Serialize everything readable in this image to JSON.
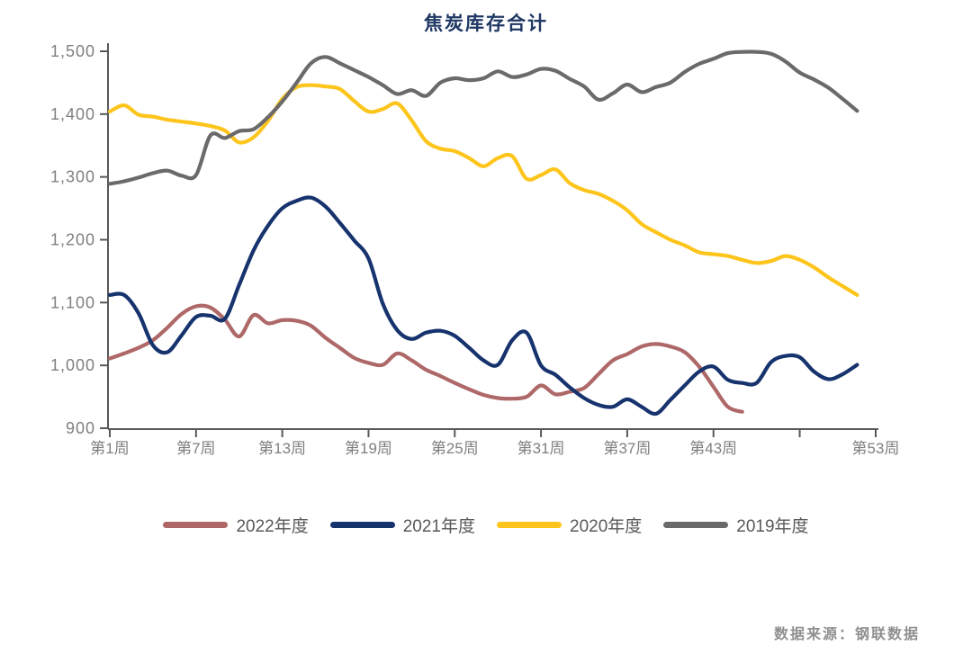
{
  "title": "焦炭库存合计",
  "title_color": "#1f3864",
  "source": "数据来源：钢联数据",
  "axis_color": "#595959",
  "tick_label_color": "#7f7f7f",
  "chart_data": {
    "type": "line",
    "title": "焦炭库存合计",
    "xlabel": "",
    "ylabel": "",
    "ylim": [
      900,
      1500
    ],
    "grid": false,
    "legend_position": "bottom",
    "y_ticks": [
      {
        "v": 900,
        "label": "900"
      },
      {
        "v": 1000,
        "label": "1,000"
      },
      {
        "v": 1100,
        "label": "1,100"
      },
      {
        "v": 1200,
        "label": "1,200"
      },
      {
        "v": 1300,
        "label": "1,300"
      },
      {
        "v": 1400,
        "label": "1,400"
      },
      {
        "v": 1500,
        "label": "1,500"
      }
    ],
    "x_ticks": [
      {
        "week": 1,
        "label": "第1周"
      },
      {
        "week": 7,
        "label": "第7周"
      },
      {
        "week": 13,
        "label": "第13周"
      },
      {
        "week": 19,
        "label": "第19周"
      },
      {
        "week": 25,
        "label": "第25周"
      },
      {
        "week": 31,
        "label": "第31周"
      },
      {
        "week": 37,
        "label": "第37周"
      },
      {
        "week": 43,
        "label": "第43周"
      },
      {
        "week": 49,
        "label": ""
      },
      {
        "week": 54.3,
        "label": "第53周"
      }
    ],
    "series": [
      {
        "name": "2022年度",
        "color": "#ae6868",
        "start_week": 1,
        "values": [
          1011,
          1019,
          1028,
          1040,
          1060,
          1082,
          1094,
          1092,
          1073,
          1046,
          1080,
          1067,
          1072,
          1071,
          1063,
          1044,
          1028,
          1012,
          1004,
          1001,
          1019,
          1008,
          993,
          983,
          972,
          962,
          953,
          948,
          947,
          950,
          968,
          954,
          958,
          964,
          986,
          1008,
          1018,
          1030,
          1034,
          1030,
          1021,
          998,
          966,
          934,
          926
        ]
      },
      {
        "name": "2020年度",
        "color": "#fdc51c",
        "start_week": 1,
        "values": [
          1404,
          1414,
          1399,
          1396,
          1391,
          1388,
          1385,
          1381,
          1374,
          1355,
          1363,
          1389,
          1424,
          1443,
          1446,
          1444,
          1440,
          1421,
          1404,
          1408,
          1417,
          1390,
          1357,
          1345,
          1341,
          1330,
          1317,
          1330,
          1333,
          1297,
          1303,
          1312,
          1290,
          1279,
          1273,
          1262,
          1247,
          1225,
          1212,
          1200,
          1191,
          1180,
          1177,
          1174,
          1168,
          1163,
          1166,
          1174,
          1168,
          1156,
          1140,
          1126,
          1112
        ]
      },
      {
        "name": "2019年度",
        "color": "#6a6a6a",
        "start_week": 1,
        "values": [
          1289,
          1293,
          1299,
          1306,
          1310,
          1302,
          1303,
          1366,
          1362,
          1373,
          1376,
          1395,
          1420,
          1450,
          1481,
          1491,
          1481,
          1470,
          1459,
          1446,
          1432,
          1438,
          1429,
          1450,
          1457,
          1454,
          1457,
          1468,
          1459,
          1463,
          1472,
          1469,
          1456,
          1444,
          1423,
          1433,
          1447,
          1435,
          1443,
          1450,
          1467,
          1480,
          1488,
          1497,
          1499,
          1499,
          1496,
          1484,
          1466,
          1455,
          1442,
          1424,
          1405
        ]
      },
      {
        "name": "2021年度",
        "color": "#16336e",
        "start_week": 1,
        "values": [
          1112,
          1112,
          1083,
          1032,
          1021,
          1048,
          1077,
          1079,
          1074,
          1128,
          1183,
          1222,
          1250,
          1262,
          1267,
          1253,
          1227,
          1199,
          1170,
          1098,
          1056,
          1042,
          1052,
          1055,
          1047,
          1028,
          1008,
          1001,
          1040,
          1052,
          1000,
          985,
          965,
          948,
          937,
          934,
          946,
          934,
          923,
          945,
          968,
          990,
          998,
          977,
          972,
          972,
          1005,
          1015,
          1013,
          990,
          978,
          986,
          1001
        ]
      }
    ],
    "legend_order": [
      "2022年度",
      "2021年度",
      "2020年度",
      "2019年度"
    ]
  }
}
